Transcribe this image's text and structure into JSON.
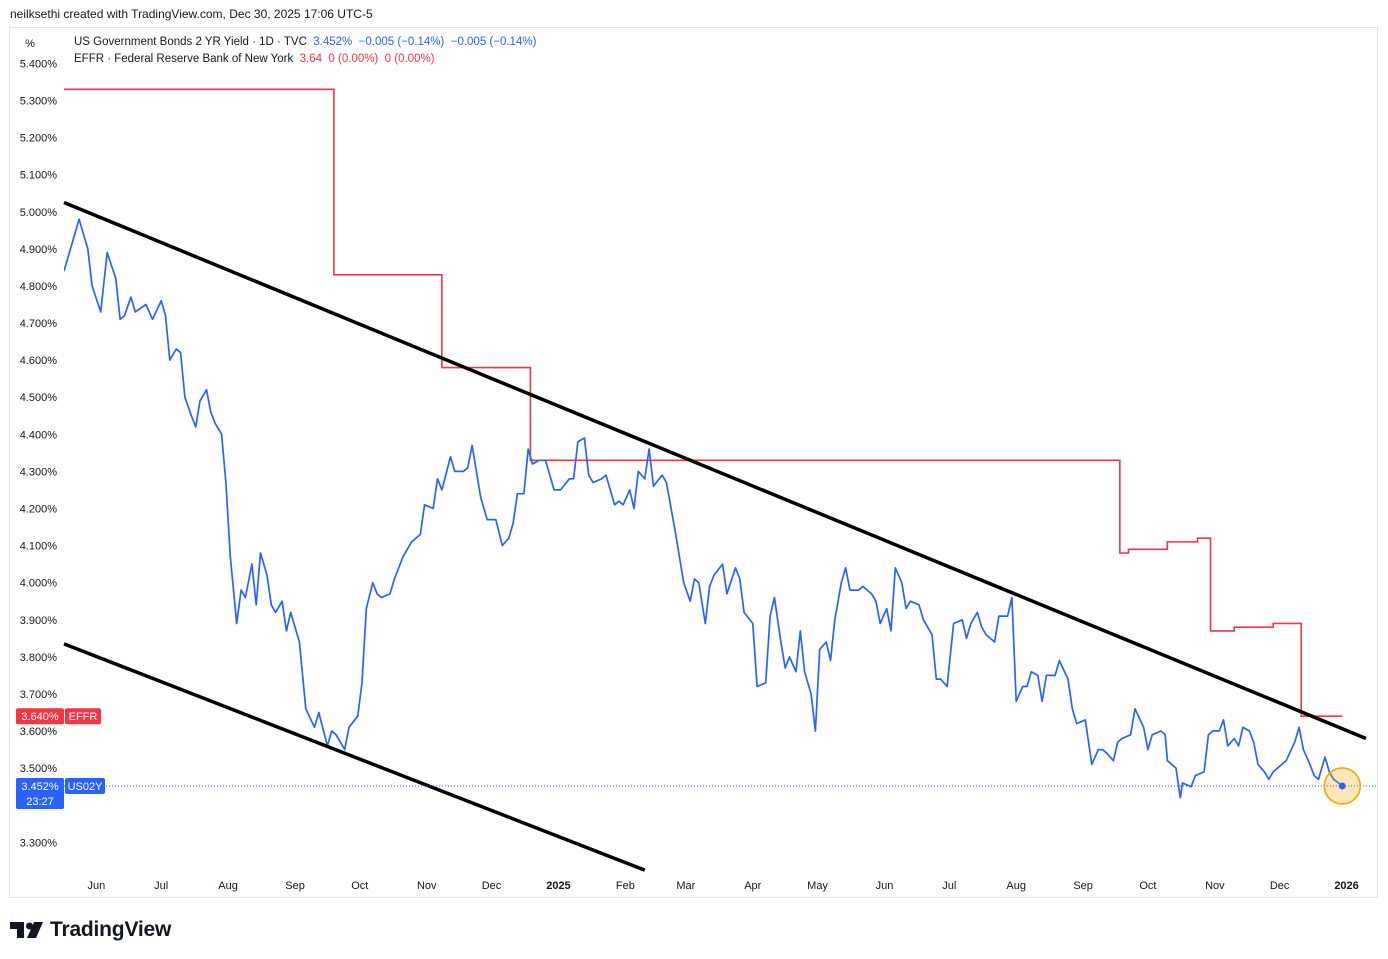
{
  "header": {
    "attribution": "neilksethi created with TradingView.com, Dec 30, 2025 17:06 UTC-5"
  },
  "toolbar": {
    "scale_label": "%"
  },
  "legend": {
    "row1": {
      "name": "US Government Bonds 2 YR Yield · 1D · TVC",
      "last": "3.452%",
      "chg1": "−0.005 (−0.14%)",
      "chg2": "−0.005 (−0.14%)"
    },
    "row2": {
      "name": "EFFR · Federal Reserve Bank of New York",
      "last": "3.64",
      "chg1": "0 (0.00%)",
      "chg2": "0 (0.00%)"
    }
  },
  "branding": {
    "name": "TradingView"
  },
  "colors": {
    "us02y": "#2962ff",
    "effr": "#f23645",
    "trend": "#000000",
    "highlight": "#f7a600"
  },
  "chart_data": {
    "type": "line",
    "y_unit": "%",
    "ylim": [
      3.22,
      5.49
    ],
    "xlim": [
      "2024-05-17",
      "2026-01-10"
    ],
    "y_ticks": [
      "5.400%",
      "5.300%",
      "5.200%",
      "5.100%",
      "5.000%",
      "4.900%",
      "4.800%",
      "4.700%",
      "4.600%",
      "4.500%",
      "4.400%",
      "4.300%",
      "4.200%",
      "4.100%",
      "4.000%",
      "3.900%",
      "3.800%",
      "3.700%",
      "3.600%",
      "3.500%",
      "3.300%"
    ],
    "x_ticks": [
      {
        "date": "2024-06-01",
        "label": "Jun"
      },
      {
        "date": "2024-07-01",
        "label": "Jul"
      },
      {
        "date": "2024-08-01",
        "label": "Aug"
      },
      {
        "date": "2024-09-01",
        "label": "Sep"
      },
      {
        "date": "2024-10-01",
        "label": "Oct"
      },
      {
        "date": "2024-11-01",
        "label": "Nov"
      },
      {
        "date": "2024-12-01",
        "label": "Dec"
      },
      {
        "date": "2025-01-01",
        "label": "2025",
        "bold": true
      },
      {
        "date": "2025-02-01",
        "label": "Feb"
      },
      {
        "date": "2025-03-01",
        "label": "Mar"
      },
      {
        "date": "2025-04-01",
        "label": "Apr"
      },
      {
        "date": "2025-05-01",
        "label": "May"
      },
      {
        "date": "2025-06-01",
        "label": "Jun"
      },
      {
        "date": "2025-07-01",
        "label": "Jul"
      },
      {
        "date": "2025-08-01",
        "label": "Aug"
      },
      {
        "date": "2025-09-01",
        "label": "Sep"
      },
      {
        "date": "2025-10-01",
        "label": "Oct"
      },
      {
        "date": "2025-11-01",
        "label": "Nov"
      },
      {
        "date": "2025-12-01",
        "label": "Dec"
      },
      {
        "date": "2026-01-01",
        "label": "2026",
        "bold": true
      }
    ],
    "series": [
      {
        "name": "US Government Bonds 2 YR Yield",
        "short": "US02Y",
        "last_label": "3.452%",
        "countdown": "23:27",
        "color": "#2962ff",
        "points": [
          [
            "2024-05-17",
            4.84
          ],
          [
            "2024-05-22",
            4.94
          ],
          [
            "2024-05-24",
            4.98
          ],
          [
            "2024-05-28",
            4.9
          ],
          [
            "2024-05-30",
            4.8
          ],
          [
            "2024-06-03",
            4.73
          ],
          [
            "2024-06-06",
            4.89
          ],
          [
            "2024-06-10",
            4.82
          ],
          [
            "2024-06-12",
            4.71
          ],
          [
            "2024-06-14",
            4.72
          ],
          [
            "2024-06-17",
            4.77
          ],
          [
            "2024-06-19",
            4.73
          ],
          [
            "2024-06-24",
            4.75
          ],
          [
            "2024-06-27",
            4.71
          ],
          [
            "2024-07-01",
            4.76
          ],
          [
            "2024-07-03",
            4.72
          ],
          [
            "2024-07-05",
            4.6
          ],
          [
            "2024-07-08",
            4.63
          ],
          [
            "2024-07-10",
            4.62
          ],
          [
            "2024-07-12",
            4.5
          ],
          [
            "2024-07-15",
            4.45
          ],
          [
            "2024-07-17",
            4.42
          ],
          [
            "2024-07-19",
            4.49
          ],
          [
            "2024-07-22",
            4.52
          ],
          [
            "2024-07-24",
            4.46
          ],
          [
            "2024-07-26",
            4.43
          ],
          [
            "2024-07-29",
            4.4
          ],
          [
            "2024-07-31",
            4.27
          ],
          [
            "2024-08-02",
            4.07
          ],
          [
            "2024-08-05",
            3.89
          ],
          [
            "2024-08-07",
            3.98
          ],
          [
            "2024-08-09",
            3.96
          ],
          [
            "2024-08-12",
            4.05
          ],
          [
            "2024-08-14",
            3.94
          ],
          [
            "2024-08-16",
            4.08
          ],
          [
            "2024-08-19",
            4.02
          ],
          [
            "2024-08-21",
            3.94
          ],
          [
            "2024-08-23",
            3.92
          ],
          [
            "2024-08-26",
            3.95
          ],
          [
            "2024-08-28",
            3.87
          ],
          [
            "2024-08-30",
            3.92
          ],
          [
            "2024-09-03",
            3.84
          ],
          [
            "2024-09-06",
            3.66
          ],
          [
            "2024-09-10",
            3.61
          ],
          [
            "2024-09-12",
            3.65
          ],
          [
            "2024-09-16",
            3.56
          ],
          [
            "2024-09-18",
            3.6
          ],
          [
            "2024-09-20",
            3.59
          ],
          [
            "2024-09-24",
            3.55
          ],
          [
            "2024-09-26",
            3.61
          ],
          [
            "2024-09-30",
            3.64
          ],
          [
            "2024-10-02",
            3.73
          ],
          [
            "2024-10-04",
            3.93
          ],
          [
            "2024-10-07",
            4.0
          ],
          [
            "2024-10-09",
            3.97
          ],
          [
            "2024-10-11",
            3.96
          ],
          [
            "2024-10-15",
            3.97
          ],
          [
            "2024-10-17",
            4.01
          ],
          [
            "2024-10-21",
            4.07
          ],
          [
            "2024-10-23",
            4.09
          ],
          [
            "2024-10-25",
            4.11
          ],
          [
            "2024-10-29",
            4.13
          ],
          [
            "2024-10-31",
            4.21
          ],
          [
            "2024-11-04",
            4.2
          ],
          [
            "2024-11-06",
            4.28
          ],
          [
            "2024-11-08",
            4.25
          ],
          [
            "2024-11-12",
            4.34
          ],
          [
            "2024-11-14",
            4.3
          ],
          [
            "2024-11-18",
            4.3
          ],
          [
            "2024-11-20",
            4.31
          ],
          [
            "2024-11-22",
            4.37
          ],
          [
            "2024-11-26",
            4.23
          ],
          [
            "2024-11-29",
            4.17
          ],
          [
            "2024-12-03",
            4.17
          ],
          [
            "2024-12-06",
            4.1
          ],
          [
            "2024-12-09",
            4.12
          ],
          [
            "2024-12-11",
            4.16
          ],
          [
            "2024-12-13",
            4.24
          ],
          [
            "2024-12-16",
            4.24
          ],
          [
            "2024-12-18",
            4.36
          ],
          [
            "2024-12-20",
            4.32
          ],
          [
            "2024-12-23",
            4.33
          ],
          [
            "2024-12-26",
            4.33
          ],
          [
            "2024-12-30",
            4.25
          ],
          [
            "2025-01-02",
            4.25
          ],
          [
            "2025-01-06",
            4.28
          ],
          [
            "2025-01-08",
            4.28
          ],
          [
            "2025-01-10",
            4.38
          ],
          [
            "2025-01-13",
            4.39
          ],
          [
            "2025-01-15",
            4.29
          ],
          [
            "2025-01-17",
            4.27
          ],
          [
            "2025-01-21",
            4.28
          ],
          [
            "2025-01-23",
            4.29
          ],
          [
            "2025-01-27",
            4.21
          ],
          [
            "2025-01-29",
            4.22
          ],
          [
            "2025-01-31",
            4.21
          ],
          [
            "2025-02-03",
            4.25
          ],
          [
            "2025-02-05",
            4.2
          ],
          [
            "2025-02-07",
            4.3
          ],
          [
            "2025-02-10",
            4.28
          ],
          [
            "2025-02-12",
            4.36
          ],
          [
            "2025-02-14",
            4.26
          ],
          [
            "2025-02-18",
            4.29
          ],
          [
            "2025-02-20",
            4.27
          ],
          [
            "2025-02-24",
            4.14
          ],
          [
            "2025-02-26",
            4.07
          ],
          [
            "2025-02-28",
            4.0
          ],
          [
            "2025-03-03",
            3.95
          ],
          [
            "2025-03-05",
            4.01
          ],
          [
            "2025-03-07",
            4.0
          ],
          [
            "2025-03-10",
            3.89
          ],
          [
            "2025-03-12",
            3.99
          ],
          [
            "2025-03-14",
            4.02
          ],
          [
            "2025-03-18",
            4.05
          ],
          [
            "2025-03-20",
            3.97
          ],
          [
            "2025-03-24",
            4.04
          ],
          [
            "2025-03-26",
            4.01
          ],
          [
            "2025-03-28",
            3.92
          ],
          [
            "2025-04-01",
            3.89
          ],
          [
            "2025-04-03",
            3.72
          ],
          [
            "2025-04-07",
            3.73
          ],
          [
            "2025-04-09",
            3.91
          ],
          [
            "2025-04-11",
            3.96
          ],
          [
            "2025-04-14",
            3.84
          ],
          [
            "2025-04-16",
            3.77
          ],
          [
            "2025-04-18",
            3.8
          ],
          [
            "2025-04-21",
            3.76
          ],
          [
            "2025-04-23",
            3.87
          ],
          [
            "2025-04-25",
            3.76
          ],
          [
            "2025-04-28",
            3.7
          ],
          [
            "2025-04-30",
            3.6
          ],
          [
            "2025-05-02",
            3.82
          ],
          [
            "2025-05-05",
            3.84
          ],
          [
            "2025-05-07",
            3.79
          ],
          [
            "2025-05-09",
            3.9
          ],
          [
            "2025-05-12",
            4.0
          ],
          [
            "2025-05-14",
            4.04
          ],
          [
            "2025-05-16",
            3.98
          ],
          [
            "2025-05-20",
            3.98
          ],
          [
            "2025-05-22",
            3.99
          ],
          [
            "2025-05-26",
            3.97
          ],
          [
            "2025-05-28",
            3.95
          ],
          [
            "2025-05-30",
            3.89
          ],
          [
            "2025-06-02",
            3.93
          ],
          [
            "2025-06-04",
            3.87
          ],
          [
            "2025-06-06",
            4.04
          ],
          [
            "2025-06-09",
            4.0
          ],
          [
            "2025-06-11",
            3.93
          ],
          [
            "2025-06-13",
            3.95
          ],
          [
            "2025-06-17",
            3.94
          ],
          [
            "2025-06-19",
            3.9
          ],
          [
            "2025-06-23",
            3.86
          ],
          [
            "2025-06-25",
            3.74
          ],
          [
            "2025-06-27",
            3.74
          ],
          [
            "2025-06-30",
            3.72
          ],
          [
            "2025-07-03",
            3.89
          ],
          [
            "2025-07-07",
            3.9
          ],
          [
            "2025-07-09",
            3.85
          ],
          [
            "2025-07-11",
            3.89
          ],
          [
            "2025-07-14",
            3.92
          ],
          [
            "2025-07-16",
            3.88
          ],
          [
            "2025-07-18",
            3.86
          ],
          [
            "2025-07-22",
            3.84
          ],
          [
            "2025-07-24",
            3.91
          ],
          [
            "2025-07-28",
            3.91
          ],
          [
            "2025-07-30",
            3.96
          ],
          [
            "2025-08-01",
            3.68
          ],
          [
            "2025-08-04",
            3.72
          ],
          [
            "2025-08-06",
            3.72
          ],
          [
            "2025-08-08",
            3.76
          ],
          [
            "2025-08-11",
            3.75
          ],
          [
            "2025-08-13",
            3.68
          ],
          [
            "2025-08-15",
            3.75
          ],
          [
            "2025-08-19",
            3.75
          ],
          [
            "2025-08-21",
            3.79
          ],
          [
            "2025-08-25",
            3.74
          ],
          [
            "2025-08-27",
            3.66
          ],
          [
            "2025-08-29",
            3.62
          ],
          [
            "2025-09-02",
            3.63
          ],
          [
            "2025-09-05",
            3.51
          ],
          [
            "2025-09-08",
            3.55
          ],
          [
            "2025-09-10",
            3.55
          ],
          [
            "2025-09-12",
            3.54
          ],
          [
            "2025-09-15",
            3.52
          ],
          [
            "2025-09-17",
            3.57
          ],
          [
            "2025-09-19",
            3.58
          ],
          [
            "2025-09-23",
            3.59
          ],
          [
            "2025-09-25",
            3.66
          ],
          [
            "2025-09-29",
            3.61
          ],
          [
            "2025-10-01",
            3.55
          ],
          [
            "2025-10-03",
            3.59
          ],
          [
            "2025-10-07",
            3.6
          ],
          [
            "2025-10-09",
            3.59
          ],
          [
            "2025-10-10",
            3.52
          ],
          [
            "2025-10-14",
            3.5
          ],
          [
            "2025-10-16",
            3.42
          ],
          [
            "2025-10-17",
            3.46
          ],
          [
            "2025-10-21",
            3.45
          ],
          [
            "2025-10-23",
            3.48
          ],
          [
            "2025-10-27",
            3.49
          ],
          [
            "2025-10-29",
            3.59
          ],
          [
            "2025-10-31",
            3.6
          ],
          [
            "2025-11-03",
            3.6
          ],
          [
            "2025-11-05",
            3.63
          ],
          [
            "2025-11-07",
            3.56
          ],
          [
            "2025-11-10",
            3.58
          ],
          [
            "2025-11-12",
            3.56
          ],
          [
            "2025-11-14",
            3.61
          ],
          [
            "2025-11-17",
            3.6
          ],
          [
            "2025-11-19",
            3.57
          ],
          [
            "2025-11-21",
            3.51
          ],
          [
            "2025-11-24",
            3.49
          ],
          [
            "2025-11-26",
            3.47
          ],
          [
            "2025-11-28",
            3.49
          ],
          [
            "2025-12-02",
            3.51
          ],
          [
            "2025-12-04",
            3.52
          ],
          [
            "2025-12-08",
            3.57
          ],
          [
            "2025-12-10",
            3.61
          ],
          [
            "2025-12-12",
            3.55
          ],
          [
            "2025-12-15",
            3.51
          ],
          [
            "2025-12-17",
            3.48
          ],
          [
            "2025-12-19",
            3.47
          ],
          [
            "2025-12-22",
            3.53
          ],
          [
            "2025-12-24",
            3.49
          ],
          [
            "2025-12-26",
            3.47
          ],
          [
            "2025-12-29",
            3.457
          ],
          [
            "2025-12-30",
            3.452
          ]
        ]
      },
      {
        "name": "EFFR · Federal Reserve Bank of New York",
        "short": "EFFR",
        "last_label": "3.640%",
        "color": "#f23645",
        "steps": [
          [
            "2024-05-17",
            5.33
          ],
          [
            "2024-09-19",
            4.83
          ],
          [
            "2024-11-08",
            4.58
          ],
          [
            "2024-12-19",
            4.33
          ],
          [
            "2025-09-18",
            4.08
          ],
          [
            "2025-09-22",
            4.09
          ],
          [
            "2025-10-10",
            4.11
          ],
          [
            "2025-10-24",
            4.12
          ],
          [
            "2025-10-30",
            3.87
          ],
          [
            "2025-11-01",
            3.87
          ],
          [
            "2025-11-10",
            3.88
          ],
          [
            "2025-11-28",
            3.89
          ],
          [
            "2025-12-11",
            3.64
          ],
          [
            "2025-12-30",
            3.64
          ]
        ]
      }
    ],
    "trend_lines": [
      {
        "name": "upper-trendline",
        "from": [
          "2024-05-17",
          5.025
        ],
        "to": [
          "2026-01-10",
          3.58
        ]
      },
      {
        "name": "lower-trendline",
        "from": [
          "2024-05-17",
          3.835
        ],
        "to": [
          "2025-02-10",
          3.225
        ]
      }
    ],
    "highlight": {
      "date": "2025-12-30",
      "value": 3.452
    }
  }
}
